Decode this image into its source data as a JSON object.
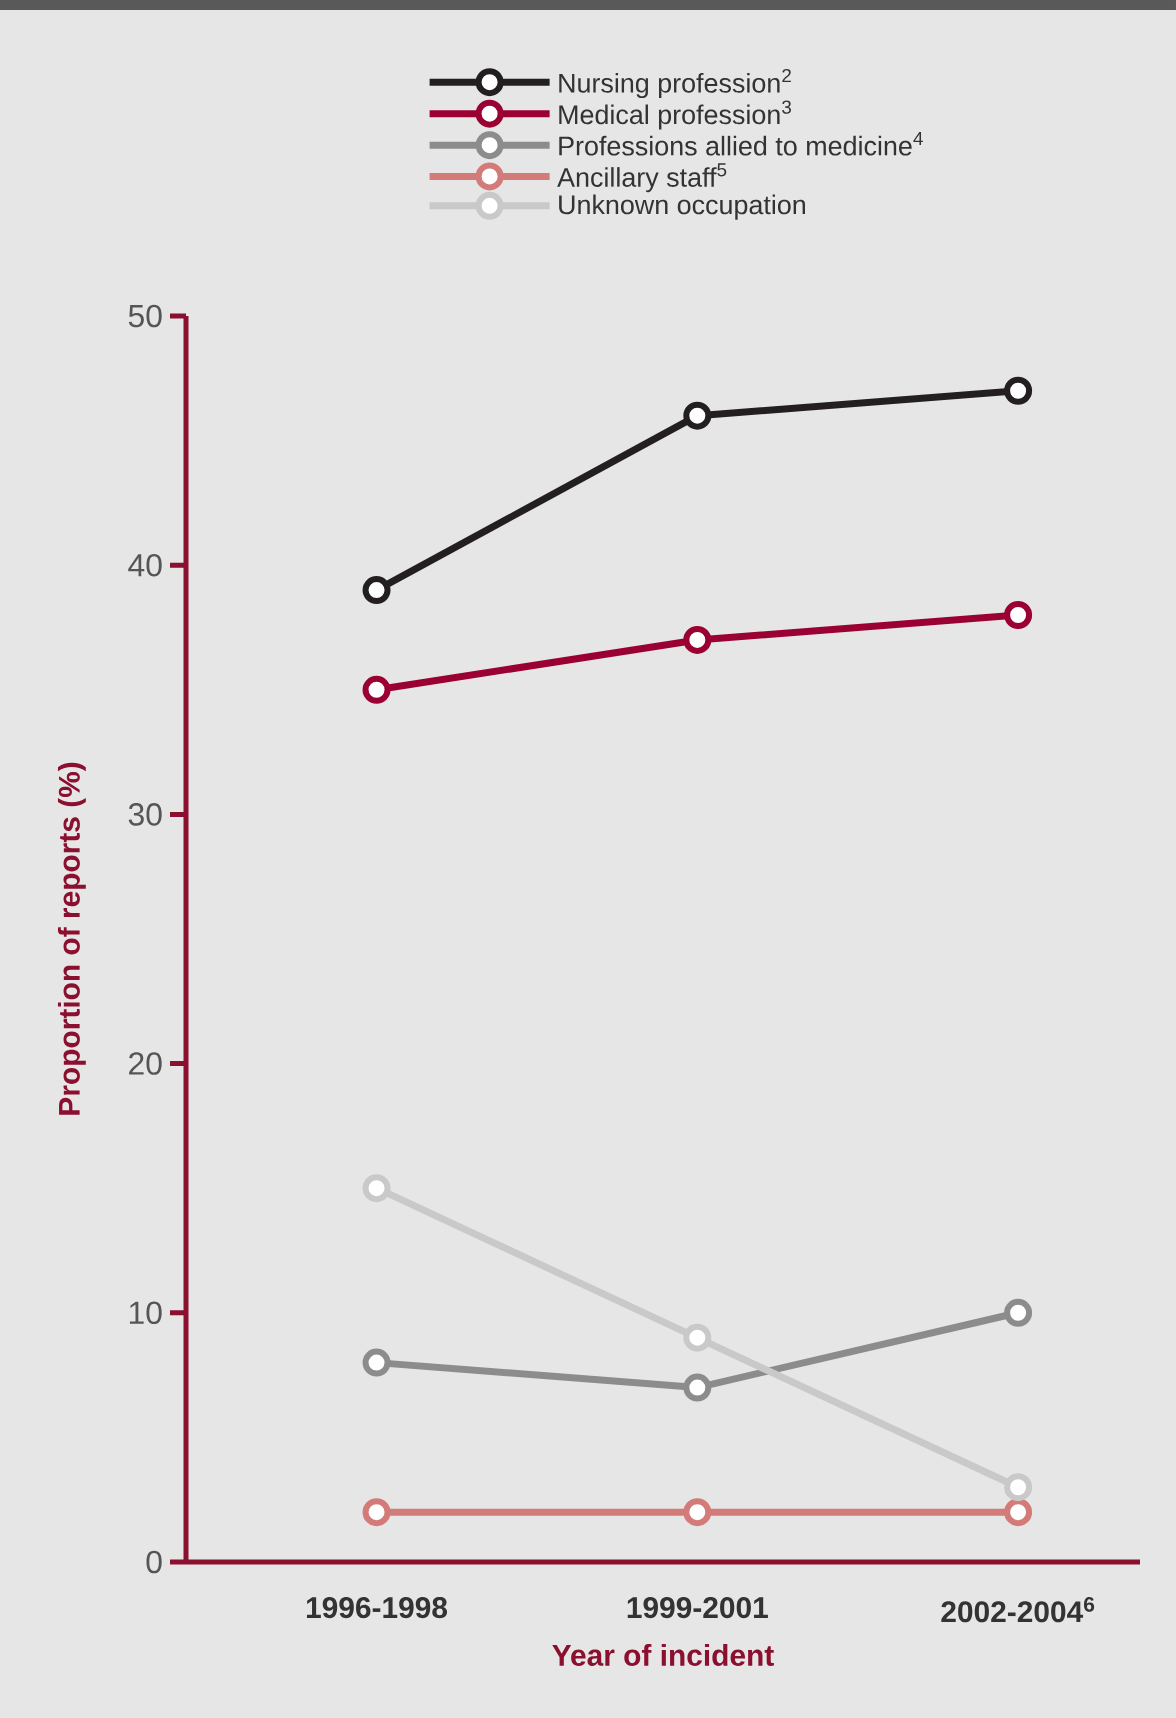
{
  "chart_data": {
    "type": "line",
    "xlabel": "Year of incident",
    "ylabel": "Proportion of reports (%)",
    "categories": [
      "1996-1998",
      "1999-2001",
      "2002-2004$^{6}$"
    ],
    "series": [
      {
        "name": "Nursing profession$^{2}$",
        "color": "#231f20",
        "values": [
          39,
          46,
          47
        ]
      },
      {
        "name": "Medical profession$^{3}$",
        "color": "#9b0033",
        "values": [
          35,
          37,
          38
        ]
      },
      {
        "name": "Professions allied to medicine$^{4}$",
        "color": "#8c8c8c",
        "values": [
          8,
          7,
          10
        ]
      },
      {
        "name": "Ancillary staff$^{5}$",
        "color": "#d27b78",
        "values": [
          2,
          2,
          2
        ]
      },
      {
        "name": "Unknown occupation",
        "color": "#c9c9c9",
        "values": [
          15,
          9,
          3
        ]
      }
    ],
    "ylim": [
      0,
      50
    ],
    "yticks": [
      0,
      10,
      20,
      30,
      40,
      50
    ],
    "legend": "top",
    "marker": "circle",
    "line_style": "solid"
  }
}
